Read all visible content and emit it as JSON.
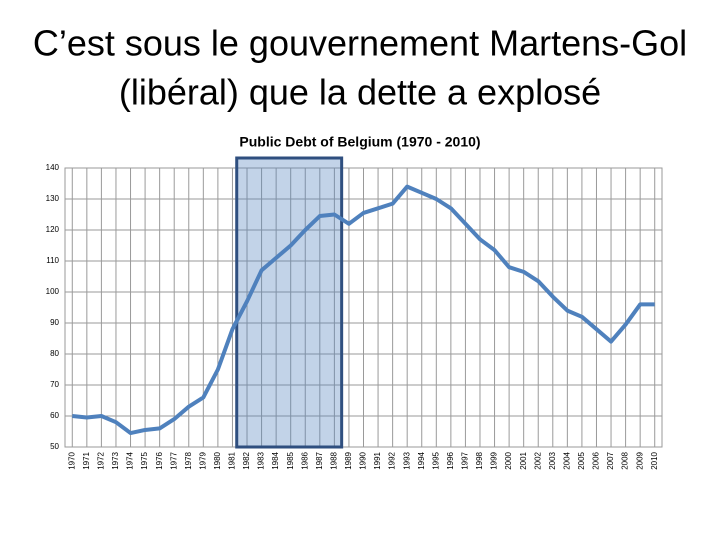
{
  "slide": {
    "title_lines": [
      "C’est sous le gouvernement Martens-Gol",
      "(libéral) que la dette a explosé"
    ]
  },
  "chart_data": {
    "type": "line",
    "title": "Public Debt of Belgium (1970 - 2010)",
    "categories": [
      "1970",
      "1971",
      "1972",
      "1973",
      "1974",
      "1975",
      "1976",
      "1977",
      "1978",
      "1979",
      "1980",
      "1981",
      "1982",
      "1983",
      "1984",
      "1985",
      "1986",
      "1987",
      "1988",
      "1989",
      "1990",
      "1991",
      "1992",
      "1993",
      "1994",
      "1995",
      "1996",
      "1997",
      "1998",
      "1999",
      "2000",
      "2001",
      "2002",
      "2003",
      "2004",
      "2005",
      "2006",
      "2007",
      "2008",
      "2009",
      "2010"
    ],
    "values": [
      60,
      59.5,
      60,
      58,
      54.5,
      55.5,
      56,
      59,
      63,
      66,
      75,
      88,
      97,
      107,
      111,
      115,
      120,
      124.5,
      125,
      122,
      125.5,
      127,
      128.5,
      134,
      132,
      130,
      127,
      122,
      117,
      113.5,
      108,
      106.5,
      103.5,
      98.5,
      94,
      92,
      88,
      84,
      89.5,
      96,
      96
    ],
    "color": "#4f81bd",
    "ylim": [
      50,
      140
    ],
    "yticks": [
      50,
      60,
      70,
      80,
      90,
      100,
      110,
      120,
      130,
      140
    ],
    "grid": true
  }
}
